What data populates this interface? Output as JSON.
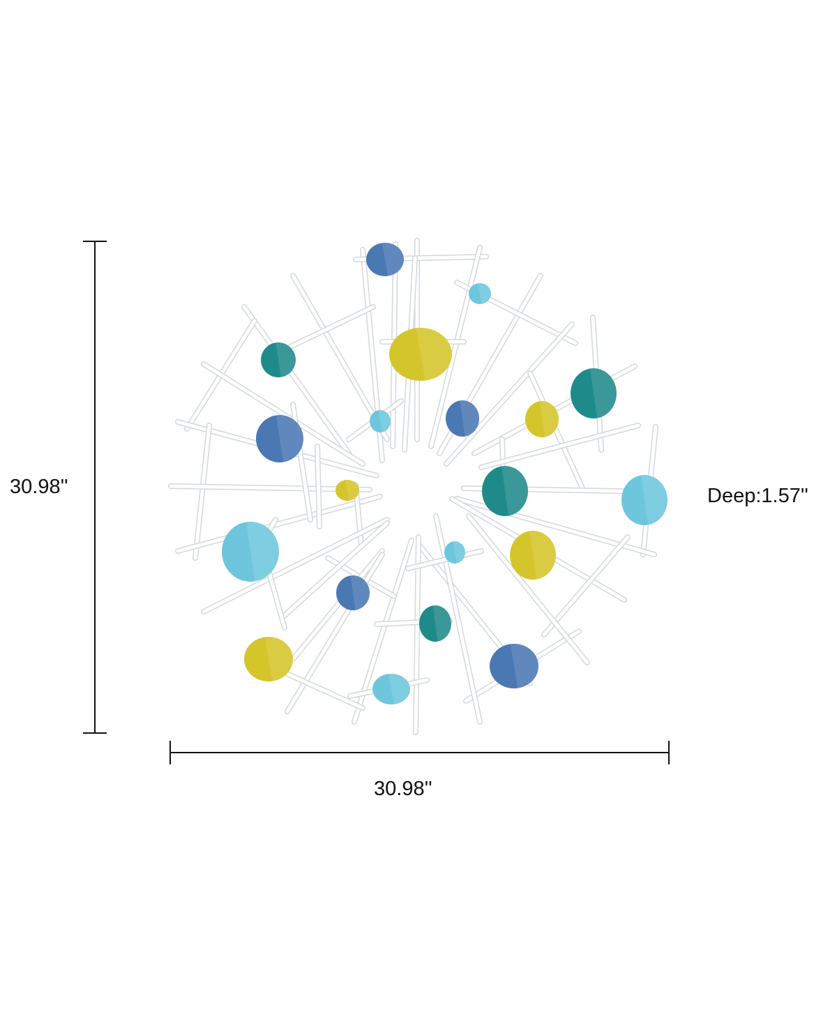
{
  "dimensions": {
    "height": "30.98''",
    "width": "30.98''",
    "depth": "Deep:1.57''"
  },
  "colors": {
    "background": "#ffffff",
    "rod": "#ffffff",
    "rod_outline": "#d3d7dc",
    "line": "#111111",
    "navy_blue": "#4a78b3",
    "teal": "#1f8a8a",
    "sky_blue": "#6dc6dc",
    "yellow": "#d4c52a"
  },
  "product": {
    "name": "metal wall sculpture",
    "disc_colors": [
      "navy_blue",
      "teal",
      "sky_blue",
      "yellow"
    ]
  }
}
